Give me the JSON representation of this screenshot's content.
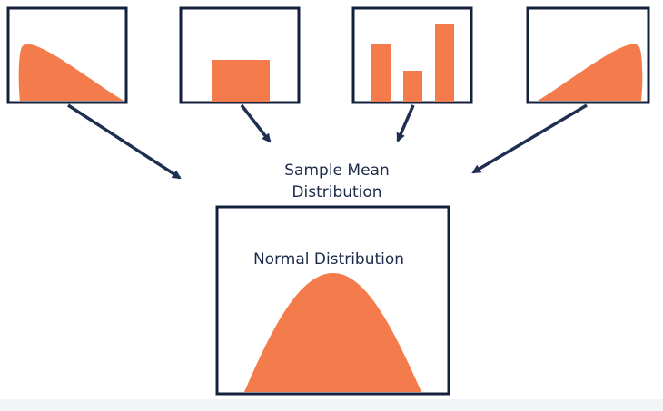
{
  "sample_mean_label": {
    "line1": "Sample Mean",
    "line2": "Distribution"
  },
  "result_label": "Normal Distribution",
  "source_distributions": [
    {
      "shape": "right-skewed"
    },
    {
      "shape": "uniform"
    },
    {
      "shape": "discrete-bars",
      "relative_heights": [
        0.8,
        0.45,
        1.0
      ]
    },
    {
      "shape": "left-skewed"
    }
  ],
  "result_shape": "bell-curve",
  "colors": {
    "fill": "#f47c4c",
    "frame": "#14213d",
    "arrow": "#1e2f52",
    "text": "#1c2b4a"
  }
}
